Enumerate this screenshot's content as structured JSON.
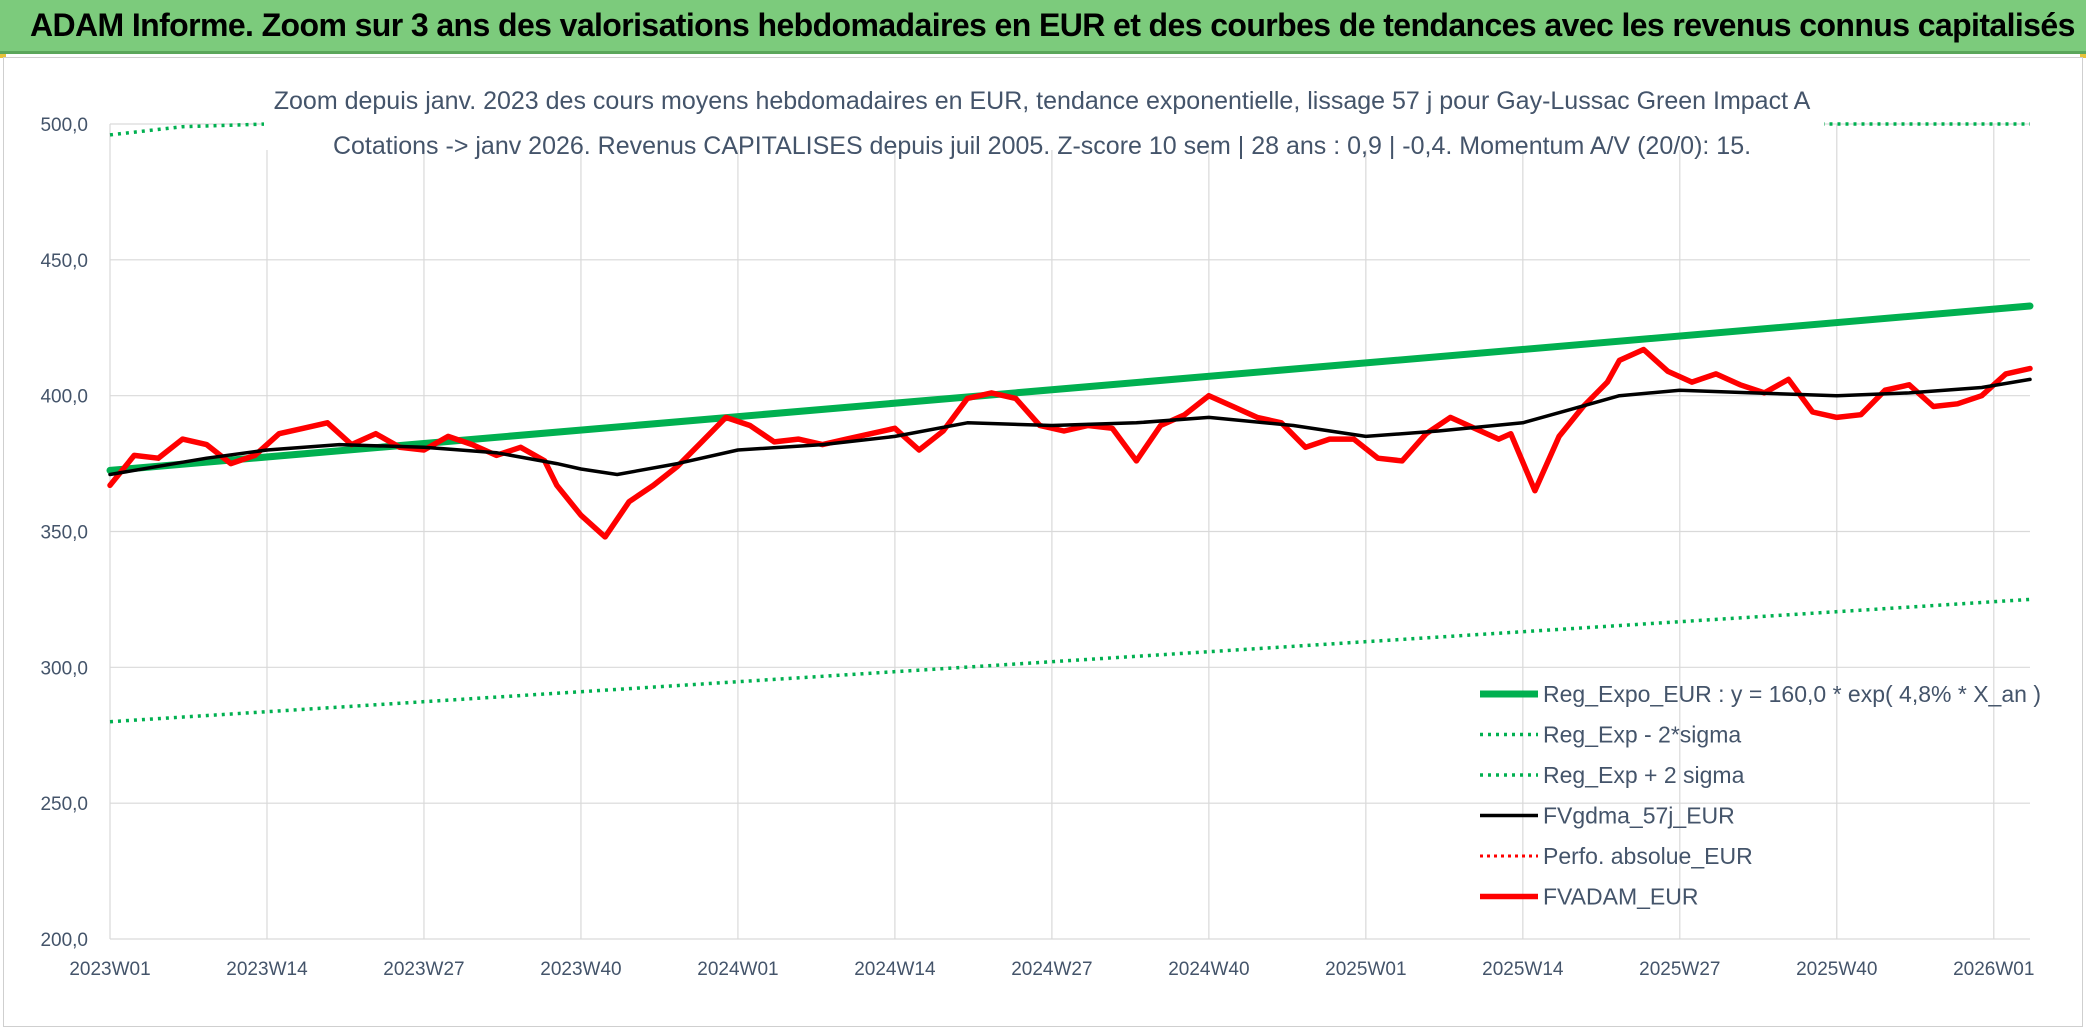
{
  "header": {
    "title": "ADAM Informe. Zoom sur 3 ans des valorisations hebdomadaires en EUR et des courbes de tendances avec les revenus connus capitalisés"
  },
  "chart_data": {
    "type": "line",
    "subtitle_line1": "Zoom depuis janv. 2023 des cours moyens hebdomadaires en EUR, tendance exponentielle, lissage 57 j pour Gay-Lussac Green Impact A",
    "subtitle_line2": "Cotations -> janv 2026. Revenus CAPITALISES depuis juil 2005. Z-score 10 sem | 28 ans : 0,9 | -0,4. Momentum A/V (20/0): 15.",
    "ylim": [
      200,
      500
    ],
    "yticks": [
      "200,0",
      "250,0",
      "300,0",
      "350,0",
      "400,0",
      "450,0",
      "500,0"
    ],
    "ytick_values": [
      200,
      250,
      300,
      350,
      400,
      450,
      500
    ],
    "xticks": [
      "2023W01",
      "2023W14",
      "2023W27",
      "2023W40",
      "2024W01",
      "2024W14",
      "2024W27",
      "2024W40",
      "2025W01",
      "2025W14",
      "2025W27",
      "2025W40",
      "2026W01"
    ],
    "xlim": [
      "2023W01",
      "2026W04"
    ],
    "grid": true,
    "legend_position": "bottom-right",
    "colors": {
      "reg_expo": "#00b050",
      "fvgdma": "#000000",
      "perfo": "#ff0000",
      "fvadam": "#ff0000",
      "grid": "#d9d9d9",
      "text": "#44546a"
    },
    "series": [
      {
        "name": "Reg_Expo_EUR : y = 160,0 * exp( 4,8% *  X_an )",
        "style": "solid-thick",
        "x": [
          "2023W01",
          "2026W04"
        ],
        "y": [
          372.5,
          433
        ]
      },
      {
        "name": "Reg_Exp - 2*sigma",
        "style": "dotted",
        "x": [
          "2023W01",
          "2026W04"
        ],
        "y": [
          280,
          325
        ]
      },
      {
        "name": "Reg_Exp + 2 sigma",
        "style": "dotted",
        "x": [
          "2023W01",
          "2023W07",
          "2023W14",
          "2026W04"
        ],
        "y": [
          496,
          499,
          500,
          500
        ]
      },
      {
        "name": "FVgdma_57j_EUR",
        "style": "solid",
        "x": [
          "2023W01",
          "2023W05",
          "2023W09",
          "2023W14",
          "2023W20",
          "2023W27",
          "2023W33",
          "2023W38",
          "2023W40",
          "2023W43",
          "2023W48",
          "2024W01",
          "2024W08",
          "2024W14",
          "2024W20",
          "2024W27",
          "2024W34",
          "2024W40",
          "2024W47",
          "2025W01",
          "2025W07",
          "2025W14",
          "2025W18",
          "2025W22",
          "2025W27",
          "2025W33",
          "2025W40",
          "2025W46",
          "2025W52",
          "2026W04"
        ],
        "y": [
          371,
          374,
          377,
          380,
          382,
          381,
          379,
          375,
          373,
          371,
          375,
          380,
          382,
          385,
          390,
          389,
          390,
          392,
          389,
          385,
          387,
          390,
          395,
          400,
          402,
          401,
          400,
          401,
          403,
          406
        ]
      },
      {
        "name": "Perfo. absolue_EUR",
        "style": "dotted",
        "x": [],
        "y": []
      },
      {
        "name": "FVADAM_EUR",
        "style": "solid-thick",
        "x": [
          "2023W01",
          "2023W03",
          "2023W05",
          "2023W07",
          "2023W09",
          "2023W11",
          "2023W13",
          "2023W15",
          "2023W17",
          "2023W19",
          "2023W21",
          "2023W23",
          "2023W25",
          "2023W27",
          "2023W29",
          "2023W31",
          "2023W33",
          "2023W35",
          "2023W37",
          "2023W38",
          "2023W40",
          "2023W42",
          "2023W44",
          "2023W46",
          "2023W48",
          "2023W50",
          "2023W52",
          "2024W02",
          "2024W04",
          "2024W06",
          "2024W08",
          "2024W10",
          "2024W12",
          "2024W14",
          "2024W16",
          "2024W18",
          "2024W20",
          "2024W22",
          "2024W24",
          "2024W26",
          "2024W28",
          "2024W30",
          "2024W32",
          "2024W34",
          "2024W36",
          "2024W38",
          "2024W40",
          "2024W42",
          "2024W44",
          "2024W46",
          "2024W48",
          "2024W50",
          "2024W52",
          "2025W02",
          "2025W04",
          "2025W06",
          "2025W08",
          "2025W10",
          "2025W12",
          "2025W13",
          "2025W15",
          "2025W17",
          "2025W19",
          "2025W21",
          "2025W22",
          "2025W24",
          "2025W26",
          "2025W28",
          "2025W30",
          "2025W32",
          "2025W34",
          "2025W36",
          "2025W38",
          "2025W40",
          "2025W42",
          "2025W44",
          "2025W46",
          "2025W48",
          "2025W50",
          "2025W52",
          "2026W02",
          "2026W04"
        ],
        "y": [
          367,
          378,
          377,
          384,
          382,
          375,
          378,
          386,
          388,
          390,
          382,
          386,
          381,
          380,
          385,
          382,
          378,
          381,
          376,
          367,
          356,
          348,
          361,
          367,
          374,
          383,
          392,
          389,
          383,
          384,
          382,
          384,
          386,
          388,
          380,
          387,
          399,
          401,
          399,
          389,
          387,
          389,
          388,
          376,
          389,
          393,
          400,
          396,
          392,
          390,
          381,
          384,
          384,
          377,
          376,
          386,
          392,
          388,
          384,
          386,
          365,
          385,
          396,
          405,
          413,
          417,
          409,
          405,
          408,
          404,
          401,
          406,
          394,
          392,
          393,
          402,
          404,
          396,
          397,
          400,
          408,
          410
        ]
      }
    ]
  }
}
